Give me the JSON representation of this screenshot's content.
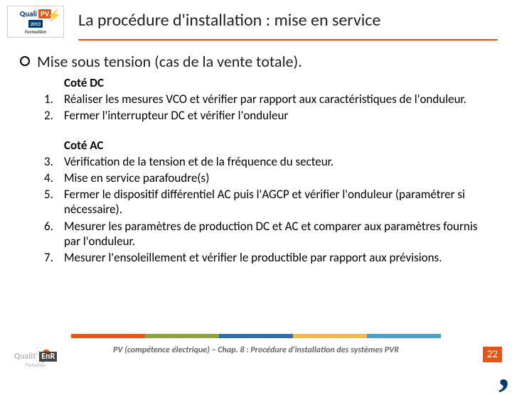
{
  "logo": {
    "brand_left": "Quali",
    "brand_right": "PV",
    "year": "2013",
    "subtitle": "Formation"
  },
  "title": "La procédure d'installation : mise en service",
  "main_bullet": "Mise sous tension (cas de la vente totale).",
  "section_dc": {
    "heading": "Coté DC",
    "items": [
      {
        "n": "1.",
        "t": "Réaliser les mesures VCO et vérifier par rapport aux caractéristiques de l'onduleur."
      },
      {
        "n": "2.",
        "t": "Fermer l'interrupteur DC et vérifier l'onduleur"
      }
    ]
  },
  "section_ac": {
    "heading": "Coté AC",
    "items": [
      {
        "n": "3.",
        "t": "Vérification de la tension et de la fréquence du secteur."
      },
      {
        "n": "4.",
        "t": "Mise en service parafoudre(s)"
      },
      {
        "n": "5.",
        "t": "Fermer le dispositif différentiel AC puis l'AGCP et vérifier l'onduleur (paramétrer si nécessaire)."
      },
      {
        "n": "6.",
        "t": "Mesurer les paramètres de production DC et AC et comparer aux paramètres fournis par l'onduleur."
      },
      {
        "n": "7.",
        "t": "Mesurer l'ensoleillement et vérifier le productible par rapport aux prévisions."
      }
    ]
  },
  "footer": {
    "text": "PV (compétence électrique) – Chap. 8 : Procédure d'installation des systèmes PVR",
    "page": "22",
    "logo_left": "Qualit'",
    "logo_right": "EnR",
    "logo_sub": "Formation"
  },
  "colors": {
    "bar": [
      "#e85412",
      "#8aa43a",
      "#2f6fa7",
      "#f2b84b",
      "#4aa0c8"
    ]
  }
}
